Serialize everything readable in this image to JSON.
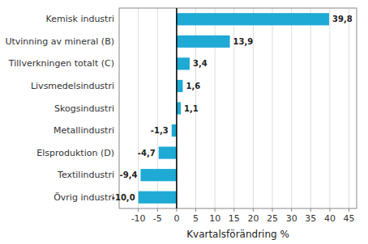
{
  "chart_data": {
    "type": "bar",
    "orientation": "horizontal",
    "categories": [
      "Övrig industri",
      "Textilindustri",
      "Elsproduktion (D)",
      "Metallindustri",
      "Skogsindustri",
      "Livsmedelsindustri",
      "Tillverkningen totalt (C)",
      "Utvinning av mineral (B)",
      "Kemisk industri"
    ],
    "values": [
      -10.0,
      -9.4,
      -4.7,
      -1.3,
      1.1,
      1.6,
      3.4,
      13.9,
      39.8
    ],
    "value_labels": [
      "-10,0",
      "-9,4",
      "-4,7",
      "-1,3",
      "1,1",
      "1,6",
      "3,4",
      "13,9",
      "39,8"
    ],
    "data_labels": true,
    "color": "#1EAAD4",
    "xlabel": "Kvartalsförändring %",
    "xlim": [
      -15,
      47
    ],
    "xticks": [
      -10,
      -5,
      0,
      5,
      10,
      15,
      20,
      25,
      30,
      35,
      40,
      45
    ],
    "grid": true
  }
}
